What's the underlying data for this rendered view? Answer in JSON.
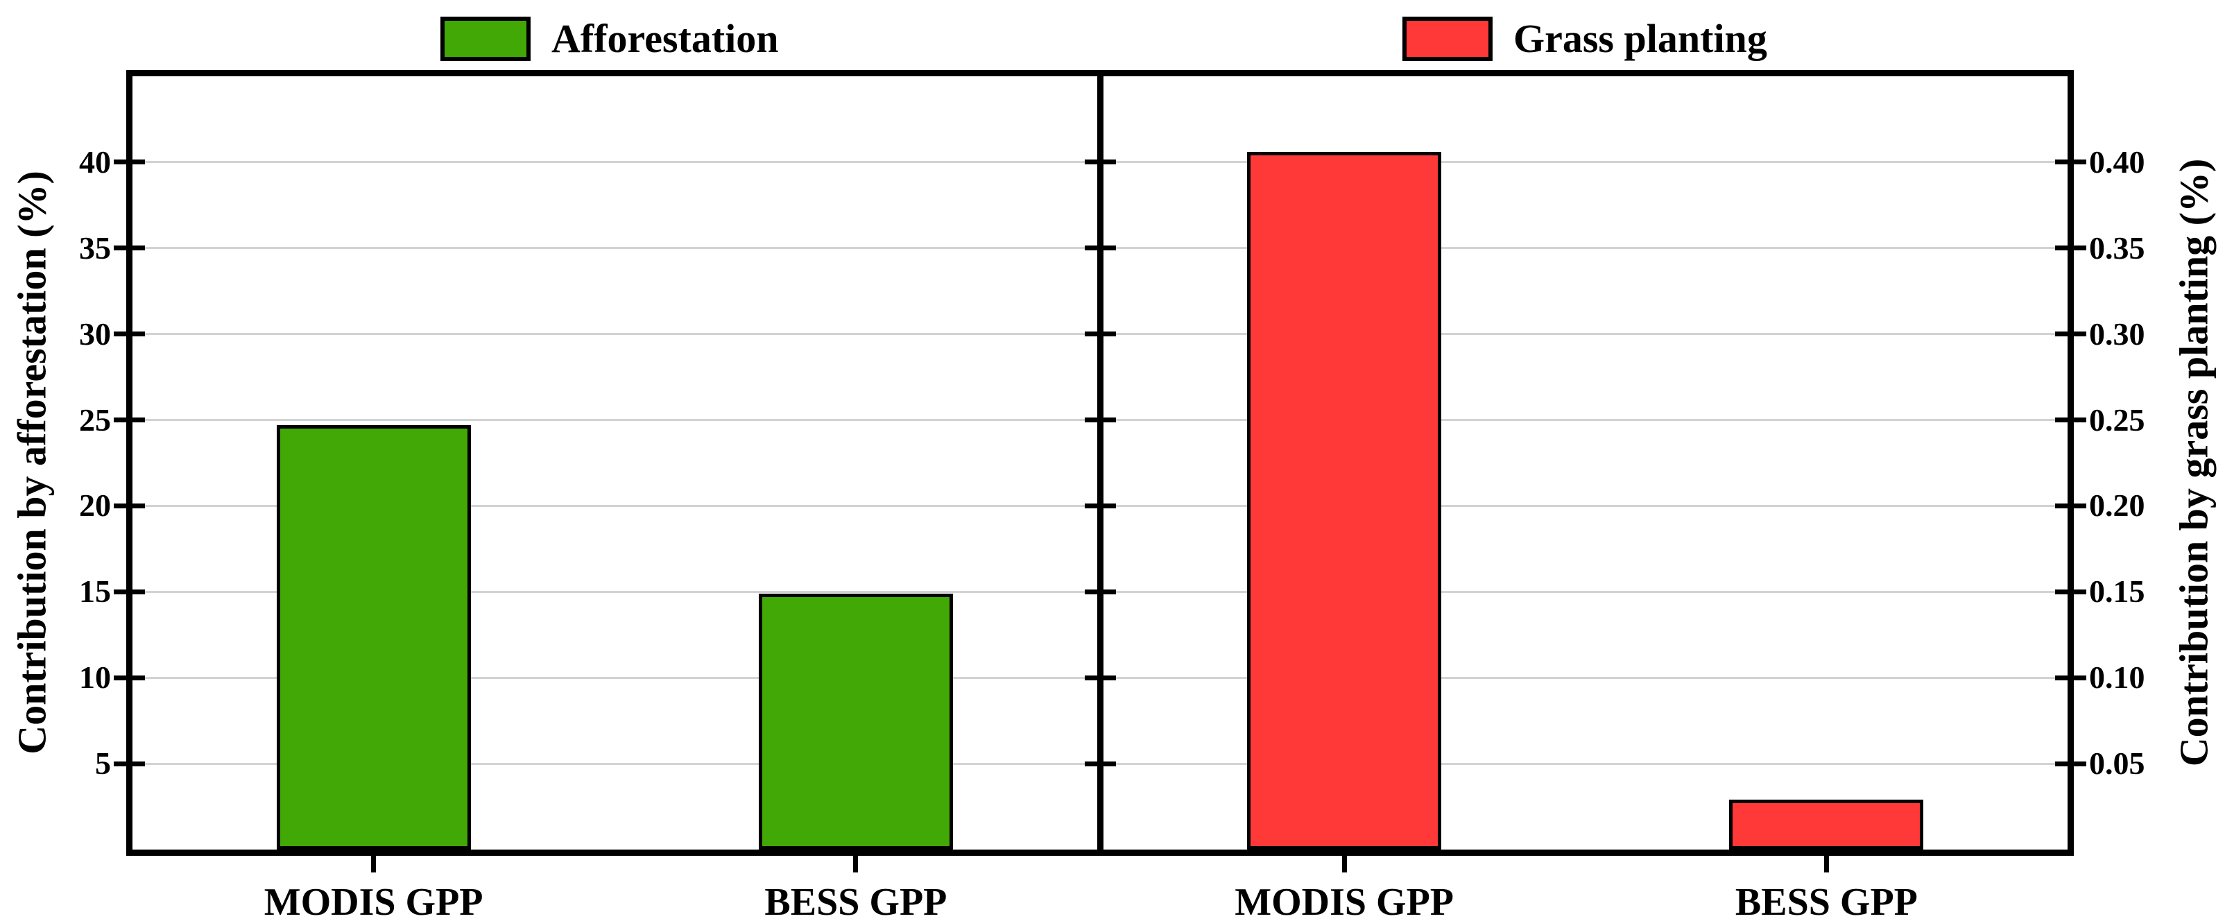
{
  "figure": {
    "background": "#FFFFFF",
    "legend": [
      {
        "label": "Afforestation",
        "color": "#41A805",
        "swatch": "legend-swatch"
      },
      {
        "label": "Grass planting",
        "color": "#FF3838",
        "swatch": "legend-swatch"
      }
    ]
  },
  "style": {
    "axis_color": "#000000",
    "grid_color": "#D3D3D3",
    "bar_border_color": "#000000",
    "afforestation_green": "#41A805",
    "grass_planting_red": "#FF3838"
  },
  "chart_data": [
    {
      "type": "bar",
      "panel": "left",
      "series_name": "Afforestation",
      "categories": [
        "MODIS GPP",
        "BESS GPP"
      ],
      "values": [
        24.7,
        14.9
      ],
      "bar_color": "#41A805",
      "ylabel": "Contribution by afforestation (%)",
      "ylabel_side": "left",
      "ylim": [
        0,
        45
      ],
      "yticks": [
        5,
        10,
        15,
        20,
        25,
        30,
        35,
        40
      ],
      "ytick_labels": [
        "5",
        "10",
        "15",
        "20",
        "25",
        "30",
        "35",
        "40"
      ],
      "grid": true,
      "legend_position": "top-center"
    },
    {
      "type": "bar",
      "panel": "right",
      "series_name": "Grass planting",
      "categories": [
        "MODIS GPP",
        "BESS GPP"
      ],
      "values": [
        0.406,
        0.029
      ],
      "bar_color": "#FF3838",
      "ylabel": "Contribution by grass planting (%)",
      "ylabel_side": "right",
      "ylim": [
        0,
        0.45
      ],
      "yticks": [
        0.05,
        0.1,
        0.15,
        0.2,
        0.25,
        0.3,
        0.35,
        0.4
      ],
      "ytick_labels": [
        "0.05",
        "0.10",
        "0.15",
        "0.20",
        "0.25",
        "0.30",
        "0.35",
        "0.40"
      ],
      "grid": true,
      "legend_position": "top-center"
    }
  ]
}
